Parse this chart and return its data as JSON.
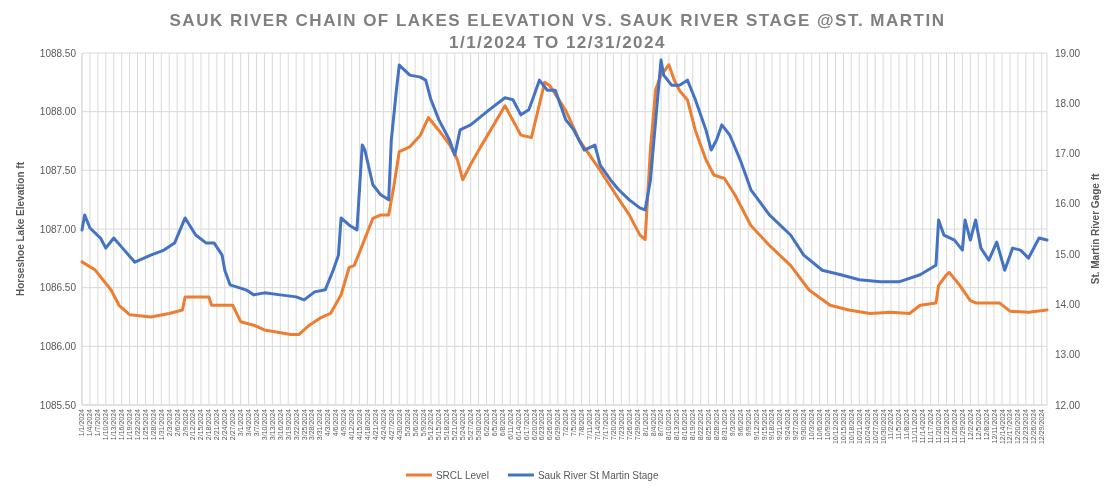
{
  "chart_data": {
    "type": "line",
    "title": "SAUK RIVER CHAIN OF LAKES ELEVATION VS. SAUK RIVER STAGE @ST. MARTIN",
    "subtitle": "1/1/2024 TO 12/31/2024",
    "ylabel": "Horseshoe Lake Elevation ft",
    "y2label": "St. Martin River Gage ft",
    "xlim": [
      "2024-01-01",
      "2024-12-31"
    ],
    "xticks": [
      {
        "value": "2024-01-01",
        "label": "1/1/2024"
      },
      {
        "value": "2024-01-04",
        "label": "1/4/2024"
      },
      {
        "value": "2024-01-07",
        "label": "1/7/2024"
      },
      {
        "value": "2024-01-10",
        "label": "1/10/2024"
      },
      {
        "value": "2024-01-13",
        "label": "1/13/2024"
      },
      {
        "value": "2024-01-16",
        "label": "1/16/2024"
      },
      {
        "value": "2024-01-19",
        "label": "1/19/2024"
      },
      {
        "value": "2024-01-22",
        "label": "1/22/2024"
      },
      {
        "value": "2024-01-25",
        "label": "1/25/2024"
      },
      {
        "value": "2024-01-28",
        "label": "1/28/2024"
      },
      {
        "value": "2024-01-31",
        "label": "1/31/2024"
      },
      {
        "value": "2024-02-03",
        "label": "2/3/2024"
      },
      {
        "value": "2024-02-06",
        "label": "2/6/2024"
      },
      {
        "value": "2024-02-09",
        "label": "2/9/2024"
      },
      {
        "value": "2024-02-12",
        "label": "2/12/2024"
      },
      {
        "value": "2024-02-15",
        "label": "2/15/2024"
      },
      {
        "value": "2024-02-18",
        "label": "2/18/2024"
      },
      {
        "value": "2024-02-21",
        "label": "2/21/2024"
      },
      {
        "value": "2024-02-24",
        "label": "2/24/2024"
      },
      {
        "value": "2024-02-27",
        "label": "2/27/2024"
      },
      {
        "value": "2024-03-01",
        "label": "3/1/2024"
      },
      {
        "value": "2024-03-04",
        "label": "3/4/2024"
      },
      {
        "value": "2024-03-07",
        "label": "3/7/2024"
      },
      {
        "value": "2024-03-10",
        "label": "3/10/2024"
      },
      {
        "value": "2024-03-13",
        "label": "3/13/2024"
      },
      {
        "value": "2024-03-16",
        "label": "3/16/2024"
      },
      {
        "value": "2024-03-19",
        "label": "3/19/2024"
      },
      {
        "value": "2024-03-22",
        "label": "3/22/2024"
      },
      {
        "value": "2024-03-25",
        "label": "3/25/2024"
      },
      {
        "value": "2024-03-28",
        "label": "3/28/2024"
      },
      {
        "value": "2024-03-31",
        "label": "3/31/2024"
      },
      {
        "value": "2024-04-03",
        "label": "4/3/2024"
      },
      {
        "value": "2024-04-06",
        "label": "4/6/2024"
      },
      {
        "value": "2024-04-09",
        "label": "4/9/2024"
      },
      {
        "value": "2024-04-12",
        "label": "4/12/2024"
      },
      {
        "value": "2024-04-15",
        "label": "4/15/2024"
      },
      {
        "value": "2024-04-18",
        "label": "4/18/2024"
      },
      {
        "value": "2024-04-21",
        "label": "4/21/2024"
      },
      {
        "value": "2024-04-24",
        "label": "4/24/2024"
      },
      {
        "value": "2024-04-27",
        "label": "4/27/2024"
      },
      {
        "value": "2024-04-30",
        "label": "4/30/2024"
      },
      {
        "value": "2024-05-03",
        "label": "5/3/2024"
      },
      {
        "value": "2024-05-06",
        "label": "5/6/2024"
      },
      {
        "value": "2024-05-09",
        "label": "5/9/2024"
      },
      {
        "value": "2024-05-12",
        "label": "5/12/2024"
      },
      {
        "value": "2024-05-15",
        "label": "5/15/2024"
      },
      {
        "value": "2024-05-18",
        "label": "5/18/2024"
      },
      {
        "value": "2024-05-21",
        "label": "5/21/2024"
      },
      {
        "value": "2024-05-24",
        "label": "5/24/2024"
      },
      {
        "value": "2024-05-27",
        "label": "5/27/2024"
      },
      {
        "value": "2024-05-30",
        "label": "5/30/2024"
      },
      {
        "value": "2024-06-02",
        "label": "6/2/2024"
      },
      {
        "value": "2024-06-05",
        "label": "6/5/2024"
      },
      {
        "value": "2024-06-08",
        "label": "6/8/2024"
      },
      {
        "value": "2024-06-11",
        "label": "6/11/2024"
      },
      {
        "value": "2024-06-14",
        "label": "6/14/2024"
      },
      {
        "value": "2024-06-17",
        "label": "6/17/2024"
      },
      {
        "value": "2024-06-20",
        "label": "6/20/2024"
      },
      {
        "value": "2024-06-23",
        "label": "6/23/2024"
      },
      {
        "value": "2024-06-26",
        "label": "6/26/2024"
      },
      {
        "value": "2024-06-29",
        "label": "6/29/2024"
      },
      {
        "value": "2024-07-02",
        "label": "7/2/2024"
      },
      {
        "value": "2024-07-05",
        "label": "7/5/2024"
      },
      {
        "value": "2024-07-08",
        "label": "7/8/2024"
      },
      {
        "value": "2024-07-11",
        "label": "7/11/2024"
      },
      {
        "value": "2024-07-14",
        "label": "7/14/2024"
      },
      {
        "value": "2024-07-17",
        "label": "7/17/2024"
      },
      {
        "value": "2024-07-20",
        "label": "7/20/2024"
      },
      {
        "value": "2024-07-23",
        "label": "7/23/2024"
      },
      {
        "value": "2024-07-26",
        "label": "7/26/2024"
      },
      {
        "value": "2024-07-29",
        "label": "7/29/2024"
      },
      {
        "value": "2024-08-01",
        "label": "8/1/2024"
      },
      {
        "value": "2024-08-04",
        "label": "8/4/2024"
      },
      {
        "value": "2024-08-07",
        "label": "8/7/2024"
      },
      {
        "value": "2024-08-10",
        "label": "8/10/2024"
      },
      {
        "value": "2024-08-13",
        "label": "8/13/2024"
      },
      {
        "value": "2024-08-16",
        "label": "8/16/2024"
      },
      {
        "value": "2024-08-19",
        "label": "8/19/2024"
      },
      {
        "value": "2024-08-22",
        "label": "8/22/2024"
      },
      {
        "value": "2024-08-25",
        "label": "8/25/2024"
      },
      {
        "value": "2024-08-28",
        "label": "8/28/2024"
      },
      {
        "value": "2024-08-31",
        "label": "8/31/2024"
      },
      {
        "value": "2024-09-03",
        "label": "9/3/2024"
      },
      {
        "value": "2024-09-06",
        "label": "9/6/2024"
      },
      {
        "value": "2024-09-09",
        "label": "9/9/2024"
      },
      {
        "value": "2024-09-12",
        "label": "9/12/2024"
      },
      {
        "value": "2024-09-15",
        "label": "9/15/2024"
      },
      {
        "value": "2024-09-18",
        "label": "9/18/2024"
      },
      {
        "value": "2024-09-21",
        "label": "9/21/2024"
      },
      {
        "value": "2024-09-24",
        "label": "9/24/2024"
      },
      {
        "value": "2024-09-27",
        "label": "9/27/2024"
      },
      {
        "value": "2024-09-30",
        "label": "9/30/2024"
      },
      {
        "value": "2024-10-03",
        "label": "10/3/2024"
      },
      {
        "value": "2024-10-06",
        "label": "10/6/2024"
      },
      {
        "value": "2024-10-09",
        "label": "10/9/2024"
      },
      {
        "value": "2024-10-12",
        "label": "10/12/2024"
      },
      {
        "value": "2024-10-15",
        "label": "10/15/2024"
      },
      {
        "value": "2024-10-18",
        "label": "10/18/2024"
      },
      {
        "value": "2024-10-21",
        "label": "10/21/2024"
      },
      {
        "value": "2024-10-24",
        "label": "10/24/2024"
      },
      {
        "value": "2024-10-27",
        "label": "10/27/2024"
      },
      {
        "value": "2024-10-30",
        "label": "10/30/2024"
      },
      {
        "value": "2024-11-02",
        "label": "11/2/2024"
      },
      {
        "value": "2024-11-05",
        "label": "11/5/2024"
      },
      {
        "value": "2024-11-08",
        "label": "11/8/2024"
      },
      {
        "value": "2024-11-11",
        "label": "11/11/2024"
      },
      {
        "value": "2024-11-14",
        "label": "11/14/2024"
      },
      {
        "value": "2024-11-17",
        "label": "11/17/2024"
      },
      {
        "value": "2024-11-20",
        "label": "11/20/2024"
      },
      {
        "value": "2024-11-23",
        "label": "11/23/2024"
      },
      {
        "value": "2024-11-26",
        "label": "11/26/2024"
      },
      {
        "value": "2024-11-29",
        "label": "11/29/2024"
      },
      {
        "value": "2024-12-02",
        "label": "12/2/2024"
      },
      {
        "value": "2024-12-05",
        "label": "12/5/2024"
      },
      {
        "value": "2024-12-08",
        "label": "12/8/2024"
      },
      {
        "value": "2024-12-11",
        "label": "12/11/2024"
      },
      {
        "value": "2024-12-14",
        "label": "12/14/2024"
      },
      {
        "value": "2024-12-17",
        "label": "12/17/2024"
      },
      {
        "value": "2024-12-20",
        "label": "12/20/2024"
      },
      {
        "value": "2024-12-23",
        "label": "12/23/2024"
      },
      {
        "value": "2024-12-26",
        "label": "12/26/2024"
      },
      {
        "value": "2024-12-29",
        "label": "12/29/2024"
      }
    ],
    "ylim": [
      1085.5,
      1088.5
    ],
    "yticks": [
      {
        "value": 1085.5,
        "label": "1085.50"
      },
      {
        "value": 1086,
        "label": "1086.00"
      },
      {
        "value": 1086.5,
        "label": "1086.50"
      },
      {
        "value": 1087,
        "label": "1087.00"
      },
      {
        "value": 1087.5,
        "label": "1087.50"
      },
      {
        "value": 1088,
        "label": "1088.00"
      },
      {
        "value": 1088.5,
        "label": "1088.50"
      }
    ],
    "y2lim": [
      12,
      19
    ],
    "y2ticks": [
      {
        "value": 12,
        "label": "12.00"
      },
      {
        "value": 13,
        "label": "13.00"
      },
      {
        "value": 14,
        "label": "14.00"
      },
      {
        "value": 15,
        "label": "15.00"
      },
      {
        "value": 16,
        "label": "16.00"
      },
      {
        "value": 17,
        "label": "17.00"
      },
      {
        "value": 18,
        "label": "18.00"
      },
      {
        "value": 19,
        "label": "19.00"
      }
    ],
    "grid": true,
    "legend": "bottom",
    "series": [
      {
        "name": "SRCL Level",
        "color": "#ed7d31",
        "x": [
          "2024-01-01",
          "2024-01-06",
          "2024-01-12",
          "2024-01-15",
          "2024-01-19",
          "2024-01-27",
          "2024-02-03",
          "2024-02-08",
          "2024-02-09",
          "2024-02-18",
          "2024-02-19",
          "2024-02-27",
          "2024-03-01",
          "2024-03-06",
          "2024-03-10",
          "2024-03-20",
          "2024-03-23",
          "2024-03-27",
          "2024-03-31",
          "2024-04-04",
          "2024-04-08",
          "2024-04-11",
          "2024-04-13",
          "2024-04-16",
          "2024-04-20",
          "2024-04-23",
          "2024-04-26",
          "2024-04-28",
          "2024-04-30",
          "2024-05-04",
          "2024-05-08",
          "2024-05-11",
          "2024-05-15",
          "2024-05-19",
          "2024-05-22",
          "2024-05-24",
          "2024-05-27",
          "2024-05-30",
          "2024-06-09",
          "2024-06-15",
          "2024-06-19",
          "2024-06-24",
          "2024-06-26",
          "2024-07-02",
          "2024-07-07",
          "2024-07-15",
          "2024-07-21",
          "2024-07-26",
          "2024-07-30",
          "2024-08-01",
          "2024-08-03",
          "2024-08-05",
          "2024-08-07",
          "2024-08-10",
          "2024-08-12",
          "2024-08-14",
          "2024-08-17",
          "2024-08-20",
          "2024-08-24",
          "2024-08-27",
          "2024-08-31",
          "2024-09-04",
          "2024-09-10",
          "2024-09-17",
          "2024-09-25",
          "2024-10-02",
          "2024-10-10",
          "2024-10-17",
          "2024-10-25",
          "2024-11-02",
          "2024-11-09",
          "2024-11-13",
          "2024-11-19",
          "2024-11-20",
          "2024-11-23",
          "2024-11-24",
          "2024-11-28",
          "2024-12-02",
          "2024-12-04",
          "2024-12-13",
          "2024-12-17",
          "2024-12-24",
          "2024-12-31"
        ],
        "values": [
          1086.72,
          1086.65,
          1086.48,
          1086.35,
          1086.27,
          1086.25,
          1086.28,
          1086.31,
          1086.42,
          1086.42,
          1086.35,
          1086.35,
          1086.21,
          1086.18,
          1086.14,
          1086.1,
          1086.1,
          1086.18,
          1086.24,
          1086.28,
          1086.44,
          1086.67,
          1086.69,
          1086.86,
          1087.09,
          1087.12,
          1087.12,
          1087.37,
          1087.66,
          1087.7,
          1087.8,
          1087.95,
          1087.84,
          1087.72,
          1087.59,
          1087.42,
          1087.55,
          1087.67,
          1088.05,
          1087.8,
          1087.78,
          1088.25,
          1088.22,
          1088.01,
          1087.76,
          1087.5,
          1087.29,
          1087.12,
          1086.95,
          1086.91,
          1087.68,
          1088.19,
          1088.31,
          1088.4,
          1088.27,
          1088.18,
          1088.1,
          1087.84,
          1087.59,
          1087.46,
          1087.43,
          1087.29,
          1087.03,
          1086.86,
          1086.69,
          1086.48,
          1086.35,
          1086.31,
          1086.28,
          1086.29,
          1086.28,
          1086.35,
          1086.37,
          1086.52,
          1086.61,
          1086.63,
          1086.52,
          1086.39,
          1086.37,
          1086.37,
          1086.3,
          1086.29,
          1086.31
        ]
      },
      {
        "name": "Sauk River St Martin Stage",
        "color": "#4472c4",
        "axis": "y2",
        "x": [
          "2024-01-01",
          "2024-01-02",
          "2024-01-04",
          "2024-01-08",
          "2024-01-10",
          "2024-01-13",
          "2024-01-17",
          "2024-01-21",
          "2024-01-27",
          "2024-02-01",
          "2024-02-05",
          "2024-02-09",
          "2024-02-13",
          "2024-02-17",
          "2024-02-20",
          "2024-02-23",
          "2024-02-24",
          "2024-02-26",
          "2024-03-03",
          "2024-03-06",
          "2024-03-10",
          "2024-03-16",
          "2024-03-22",
          "2024-03-25",
          "2024-03-29",
          "2024-04-02",
          "2024-04-05",
          "2024-04-07",
          "2024-04-08",
          "2024-04-11",
          "2024-04-14",
          "2024-04-16",
          "2024-04-17",
          "2024-04-20",
          "2024-04-23",
          "2024-04-26",
          "2024-04-27",
          "2024-04-29",
          "2024-04-30",
          "2024-05-02",
          "2024-05-04",
          "2024-05-08",
          "2024-05-10",
          "2024-05-12",
          "2024-05-15",
          "2024-05-19",
          "2024-05-21",
          "2024-05-23",
          "2024-05-27",
          "2024-06-03",
          "2024-06-09",
          "2024-06-12",
          "2024-06-15",
          "2024-06-18",
          "2024-06-20",
          "2024-06-22",
          "2024-06-25",
          "2024-06-28",
          "2024-07-02",
          "2024-07-05",
          "2024-07-09",
          "2024-07-13",
          "2024-07-15",
          "2024-07-19",
          "2024-07-22",
          "2024-07-26",
          "2024-07-30",
          "2024-08-01",
          "2024-08-03",
          "2024-08-05",
          "2024-08-07",
          "2024-08-08",
          "2024-08-11",
          "2024-08-14",
          "2024-08-17",
          "2024-08-20",
          "2024-08-24",
          "2024-08-26",
          "2024-08-28",
          "2024-08-30",
          "2024-09-02",
          "2024-09-06",
          "2024-09-10",
          "2024-09-17",
          "2024-09-25",
          "2024-09-30",
          "2024-10-07",
          "2024-10-14",
          "2024-10-21",
          "2024-10-29",
          "2024-11-05",
          "2024-11-13",
          "2024-11-19",
          "2024-11-20",
          "2024-11-22",
          "2024-11-26",
          "2024-11-29",
          "2024-11-30",
          "2024-12-02",
          "2024-12-04",
          "2024-12-06",
          "2024-12-09",
          "2024-12-12",
          "2024-12-15",
          "2024-12-18",
          "2024-12-21",
          "2024-12-24",
          "2024-12-28",
          "2024-12-31"
        ],
        "values": [
          15.48,
          15.78,
          15.52,
          15.32,
          15.12,
          15.32,
          15.08,
          14.84,
          14.98,
          15.08,
          15.22,
          15.72,
          15.38,
          15.22,
          15.22,
          14.98,
          14.68,
          14.39,
          14.29,
          14.19,
          14.23,
          14.19,
          14.15,
          14.09,
          14.25,
          14.29,
          14.68,
          14.98,
          15.72,
          15.58,
          15.48,
          17.17,
          17.07,
          16.38,
          16.18,
          16.08,
          17.27,
          18.3,
          18.76,
          18.66,
          18.56,
          18.52,
          18.46,
          18.07,
          17.67,
          17.27,
          16.97,
          17.47,
          17.57,
          17.87,
          18.11,
          18.07,
          17.77,
          17.87,
          18.16,
          18.46,
          18.26,
          18.26,
          17.67,
          17.47,
          17.07,
          17.17,
          16.77,
          16.47,
          16.28,
          16.08,
          15.92,
          15.88,
          16.47,
          17.67,
          18.86,
          18.56,
          18.36,
          18.36,
          18.46,
          18.07,
          17.47,
          17.07,
          17.27,
          17.57,
          17.37,
          16.87,
          16.28,
          15.78,
          15.38,
          14.98,
          14.68,
          14.59,
          14.49,
          14.45,
          14.45,
          14.59,
          14.78,
          15.68,
          15.38,
          15.28,
          15.08,
          15.68,
          15.28,
          15.68,
          15.12,
          14.88,
          15.24,
          14.68,
          15.12,
          15.08,
          14.92,
          15.32,
          15.28
        ]
      }
    ]
  }
}
